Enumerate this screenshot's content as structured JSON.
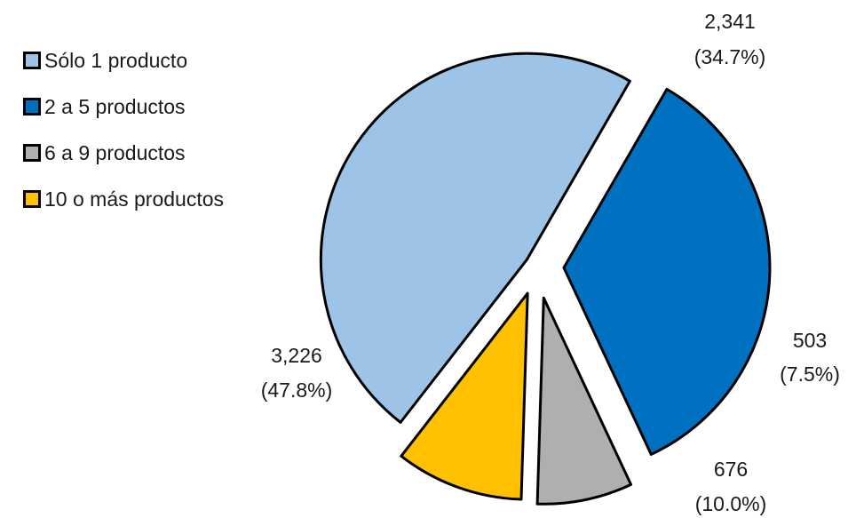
{
  "chart_data": {
    "type": "pie",
    "title": "",
    "legend_position": "top-left",
    "exploded": true,
    "categories": [
      "Sólo 1 producto",
      "2 a 5 productos",
      "6 a 9 productos",
      "10 o más productos"
    ],
    "values": [
      3226,
      2341,
      503,
      676
    ],
    "value_labels": [
      "3,226",
      "2,341",
      "503",
      "676"
    ],
    "percent_labels": [
      "(47.8%)",
      "(34.7%)",
      "(7.5%)",
      "(10.0%)"
    ],
    "colors": [
      "#9dc3e6",
      "#0070c0",
      "#b0aeae",
      "#ffc000"
    ]
  }
}
